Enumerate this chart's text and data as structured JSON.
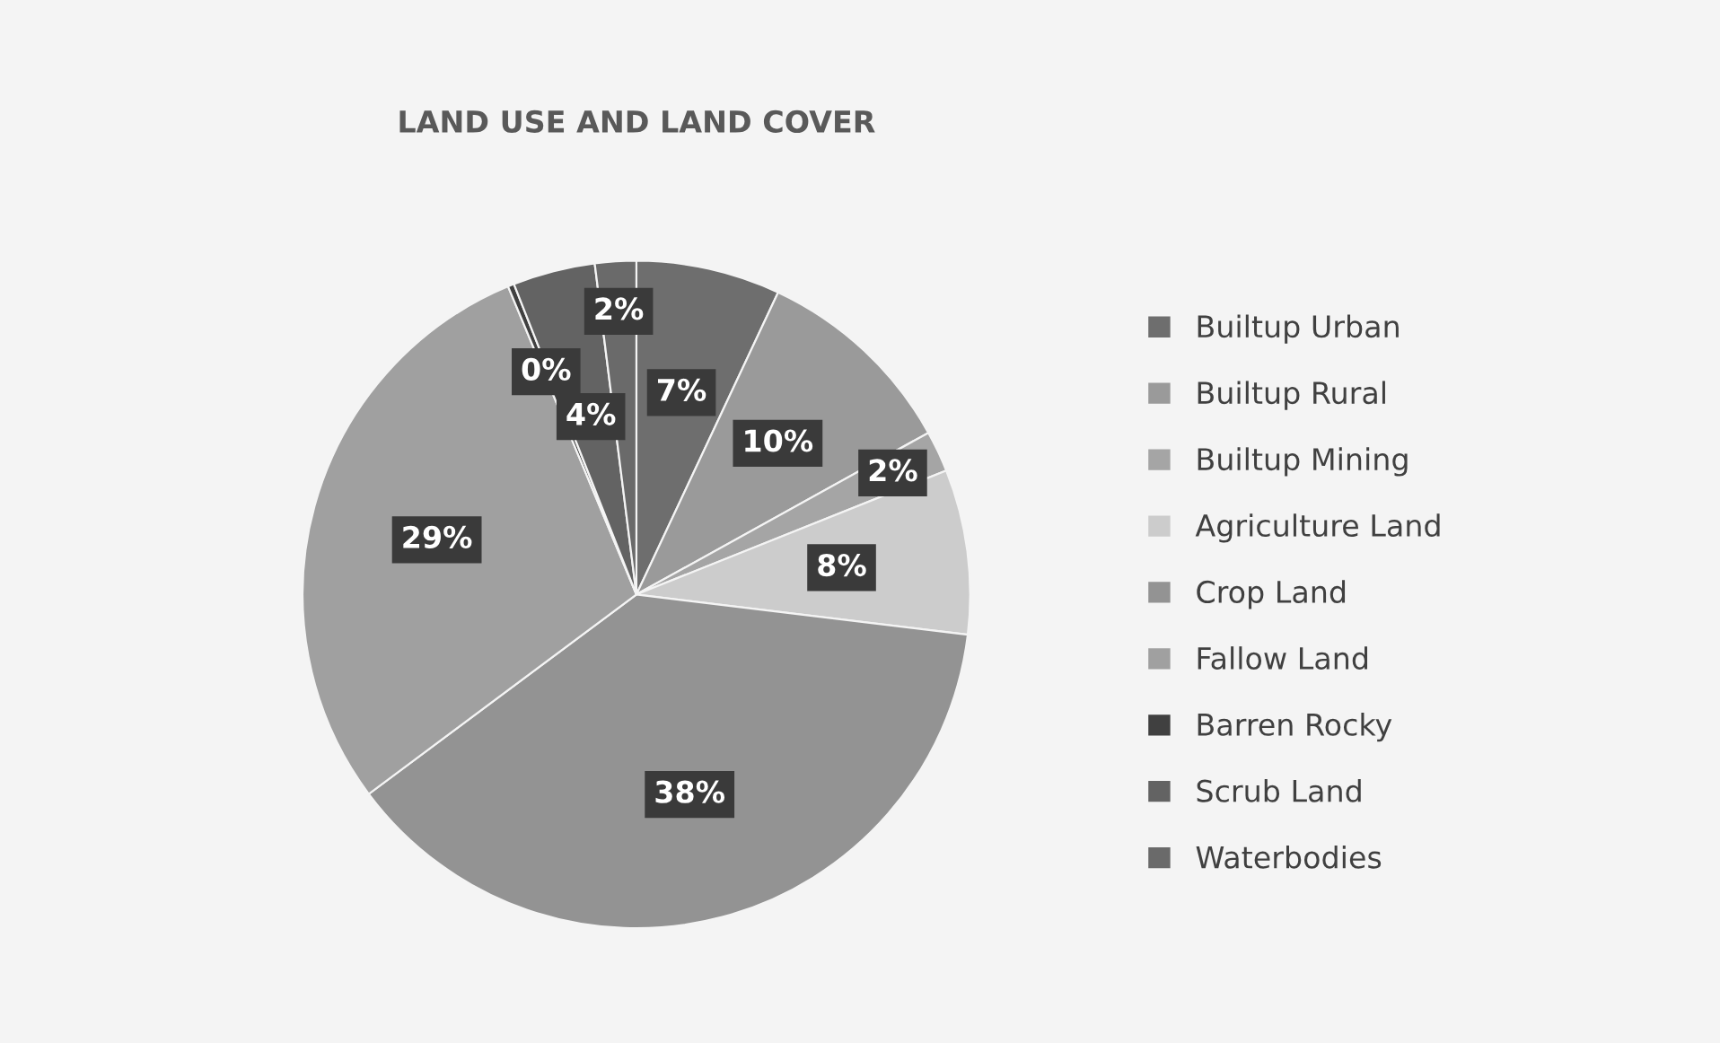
{
  "chart_data": {
    "type": "pie",
    "title": "LAND USE AND LAND COVER",
    "categories": [
      "Builtup Urban",
      "Builtup Rural",
      "Builtup Mining",
      "Agriculture Land",
      "Crop Land",
      "Fallow Land",
      "Barren Rocky",
      "Scrub Land",
      "Waterbodies"
    ],
    "values": [
      7,
      10,
      2,
      8,
      38,
      29,
      0.3,
      4,
      2
    ],
    "value_labels": [
      "7%",
      "10%",
      "2%",
      "8%",
      "38%",
      "29%",
      "0%",
      "4%",
      "2%"
    ],
    "colors": [
      "#6e6e6e",
      "#9a9a9a",
      "#a5a5a5",
      "#cccccc",
      "#939393",
      "#a0a0a0",
      "#404040",
      "#636363",
      "#6a6a6a"
    ],
    "legend": "right"
  }
}
